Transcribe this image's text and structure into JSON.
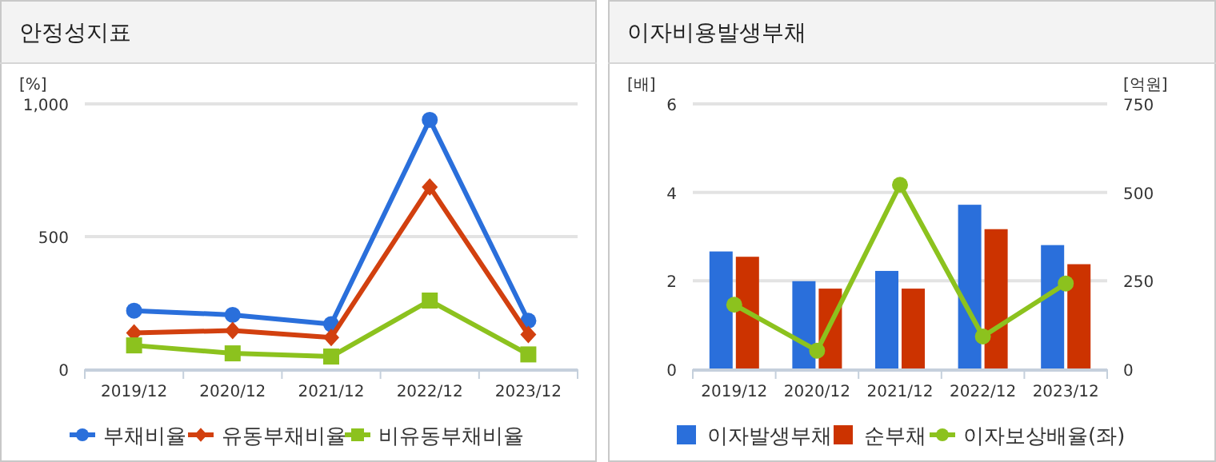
{
  "chart_data": [
    {
      "type": "line",
      "title": "안정성지표",
      "ylabel": "[%]",
      "categories": [
        "2019/12",
        "2020/12",
        "2021/12",
        "2022/12",
        "2023/12"
      ],
      "ylim": [
        0,
        1000
      ],
      "yticks": [
        0,
        500,
        {
          "value": 1000,
          "label": "1,000"
        }
      ],
      "grid": "y",
      "legend": "bottom",
      "series": [
        {
          "name": "부채비율",
          "color": "#2a6fdb",
          "marker": "circle",
          "values": [
            221,
            205,
            170,
            940,
            183
          ]
        },
        {
          "name": "유동부채비율",
          "color": "#d2400f",
          "marker": "diamond",
          "values": [
            137,
            146,
            120,
            687,
            131
          ]
        },
        {
          "name": "비유동부채비율",
          "color": "#8cc21e",
          "marker": "square",
          "values": [
            90,
            60,
            48,
            259,
            56
          ]
        }
      ]
    },
    {
      "type": "bar",
      "title": "이자비용발생부채",
      "ylabel": "[배]",
      "y2label": "[억원]",
      "categories": [
        "2019/12",
        "2020/12",
        "2021/12",
        "2022/12",
        "2023/12"
      ],
      "ylim": [
        0,
        6
      ],
      "yticks": [
        0,
        2,
        4,
        6
      ],
      "y2lim": [
        0,
        750
      ],
      "y2ticks": [
        0,
        250,
        500,
        750
      ],
      "grid": "y",
      "legend": "bottom",
      "series": [
        {
          "name": "이자발생부채",
          "color": "#2a6fdb",
          "axis": "y2",
          "values": [
            333,
            249,
            278,
            465,
            351
          ]
        },
        {
          "name": "순부채",
          "color": "#cc3300",
          "axis": "y2",
          "values": [
            318,
            228,
            228,
            396,
            297
          ]
        },
        {
          "name": "이자보상배율(좌)",
          "color": "#8cc21e",
          "type": "line",
          "axis": "y",
          "marker": "circle",
          "values": [
            1.46,
            0.42,
            4.17,
            0.74,
            1.94
          ]
        }
      ]
    }
  ]
}
